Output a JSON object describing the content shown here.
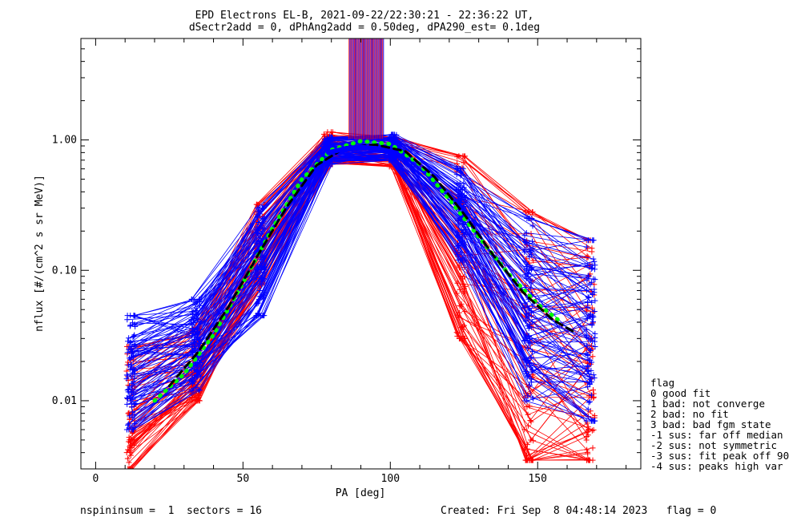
{
  "chart_data": {
    "type": "line",
    "title": "EPD Electrons EL-B, 2021-09-22/22:30:21 - 22:36:22 UT,",
    "subtitle": "dSectr2add = 0, dPhAng2add = 0.50deg, dPA290_est=   0.1deg",
    "xlabel": "PA [deg]",
    "ylabel": "nflux [#/(cm^2 s sr MeV)]",
    "xlim": [
      -5,
      185
    ],
    "ylim": [
      0.003,
      6.0
    ],
    "yscale": "log",
    "x_ticks": [
      0,
      50,
      100,
      150
    ],
    "x_tick_labels": [
      "0",
      "50",
      "100",
      "150"
    ],
    "y_ticks": [
      0.01,
      0.1,
      1.0
    ],
    "y_tick_labels": [
      "0.01",
      "0.10",
      "1.00"
    ],
    "grid": false,
    "sector_pa": [
      12,
      34,
      56,
      79,
      101,
      124,
      147,
      168
    ],
    "envelope_blue": {
      "low": [
        0.006,
        0.012,
        0.045,
        0.65,
        0.7,
        0.12,
        0.01,
        0.007
      ],
      "high": [
        0.045,
        0.06,
        0.3,
        1.05,
        1.1,
        0.6,
        0.25,
        0.17
      ]
    },
    "envelope_red": {
      "low": [
        0.003,
        0.01,
        0.08,
        0.65,
        0.62,
        0.03,
        0.0035,
        0.0035
      ],
      "high": [
        0.026,
        0.035,
        0.32,
        1.15,
        1.05,
        0.75,
        0.28,
        0.17
      ]
    },
    "series": [
      {
        "color": "#00ff00",
        "style": "dotted",
        "x": [
          20,
          30,
          40,
          50,
          60,
          70,
          80,
          90,
          100,
          110,
          120,
          130,
          140,
          150,
          158
        ],
        "y": [
          0.01,
          0.016,
          0.032,
          0.08,
          0.21,
          0.5,
          0.84,
          0.98,
          0.93,
          0.65,
          0.35,
          0.18,
          0.095,
          0.055,
          0.04
        ]
      },
      {
        "color": "#000000",
        "style": "dashed",
        "x": [
          25,
          35,
          45,
          55,
          65,
          75,
          85,
          95,
          105,
          115,
          125,
          135,
          145,
          155,
          163
        ],
        "y": [
          0.013,
          0.024,
          0.052,
          0.13,
          0.31,
          0.64,
          0.88,
          0.92,
          0.82,
          0.52,
          0.27,
          0.13,
          0.068,
          0.042,
          0.033
        ]
      },
      {
        "color": "#0000ff",
        "style": "solid-thick",
        "x": [
          79,
          85,
          90,
          95,
          101
        ],
        "y": [
          0.8,
          0.86,
          0.88,
          0.86,
          0.8
        ]
      }
    ],
    "legend": {
      "title": "flag",
      "placement": "right",
      "entries": [
        " 0 good fit",
        " 1 bad: not converge",
        " 2 bad: no fit",
        " 3 bad: bad fgm state",
        "-1 sus: far off median",
        "-2 sus: not symmetric",
        "-3 sus: fit peak off 90",
        "-4 sus: peaks high var"
      ]
    }
  },
  "footer": {
    "left": "nspininsum =  1  sectors = 16",
    "right": "Created: Fri Sep  8 04:48:14 2023   flag = 0"
  }
}
